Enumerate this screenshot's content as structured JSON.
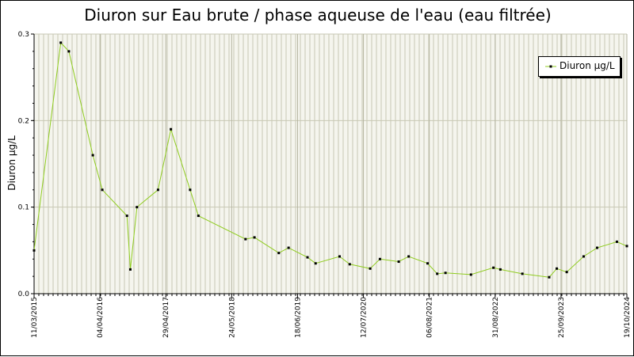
{
  "chart_data": {
    "type": "line",
    "title": "Diuron sur Eau brute / phase aqueuse de l'eau (eau filtrée)",
    "ylabel": "Diuron µg/L",
    "xlabel": "",
    "x_range": [
      "2015-03-11",
      "2024-10-19"
    ],
    "ylim": [
      0,
      0.3
    ],
    "y_ticks": [
      0,
      0.1,
      0.2,
      0.3
    ],
    "y_tick_labels": [
      "0.0",
      "0.1",
      "0.2",
      "0.3"
    ],
    "x_ticks": [
      "2015-03-11",
      "2016-04-04",
      "2017-04-29",
      "2018-05-24",
      "2019-06-18",
      "2020-07-12",
      "2021-08-06",
      "2022-08-31",
      "2023-09-25",
      "2024-10-19"
    ],
    "x_tick_labels": [
      "11/03/2015",
      "04/04/2016",
      "29/04/2017",
      "24/05/2018",
      "18/06/2019",
      "12/07/2020",
      "06/08/2021",
      "31/08/2022",
      "25/09/2023",
      "19/10/2024"
    ],
    "grid": true,
    "legend_position": "top-right",
    "colors": {
      "line": "#8fcc1f",
      "marker": "#000000",
      "plot_bg": "#f5f5ee",
      "grid": "#c8c8b4"
    },
    "series": [
      {
        "name": "Diuron µg/L",
        "points": [
          {
            "x": "2015-03-11",
            "y": 0.05
          },
          {
            "x": "2015-08-16",
            "y": 0.29
          },
          {
            "x": "2015-10-03",
            "y": 0.28
          },
          {
            "x": "2016-02-22",
            "y": 0.16
          },
          {
            "x": "2016-04-18",
            "y": 0.12
          },
          {
            "x": "2016-09-11",
            "y": 0.09
          },
          {
            "x": "2016-10-01",
            "y": 0.028
          },
          {
            "x": "2016-11-09",
            "y": 0.1
          },
          {
            "x": "2017-03-14",
            "y": 0.12
          },
          {
            "x": "2017-05-29",
            "y": 0.19
          },
          {
            "x": "2017-09-20",
            "y": 0.12
          },
          {
            "x": "2017-11-08",
            "y": 0.09
          },
          {
            "x": "2018-08-14",
            "y": 0.063
          },
          {
            "x": "2018-10-06",
            "y": 0.065
          },
          {
            "x": "2019-02-27",
            "y": 0.047
          },
          {
            "x": "2019-04-26",
            "y": 0.053
          },
          {
            "x": "2019-08-16",
            "y": 0.042
          },
          {
            "x": "2019-10-03",
            "y": 0.035
          },
          {
            "x": "2020-02-22",
            "y": 0.043
          },
          {
            "x": "2020-04-22",
            "y": 0.034
          },
          {
            "x": "2020-08-21",
            "y": 0.029
          },
          {
            "x": "2020-10-18",
            "y": 0.04
          },
          {
            "x": "2021-02-06",
            "y": 0.037
          },
          {
            "x": "2021-04-06",
            "y": 0.043
          },
          {
            "x": "2021-07-27",
            "y": 0.035
          },
          {
            "x": "2021-09-22",
            "y": 0.023
          },
          {
            "x": "2021-11-10",
            "y": 0.024
          },
          {
            "x": "2022-04-10",
            "y": 0.022
          },
          {
            "x": "2022-08-21",
            "y": 0.03
          },
          {
            "x": "2022-10-01",
            "y": 0.028
          },
          {
            "x": "2023-02-08",
            "y": 0.023
          },
          {
            "x": "2023-07-17",
            "y": 0.019
          },
          {
            "x": "2023-08-31",
            "y": 0.029
          },
          {
            "x": "2023-10-29",
            "y": 0.025
          },
          {
            "x": "2024-02-06",
            "y": 0.043
          },
          {
            "x": "2024-04-26",
            "y": 0.053
          },
          {
            "x": "2024-08-21",
            "y": 0.06
          },
          {
            "x": "2024-10-19",
            "y": 0.055
          }
        ]
      }
    ]
  }
}
